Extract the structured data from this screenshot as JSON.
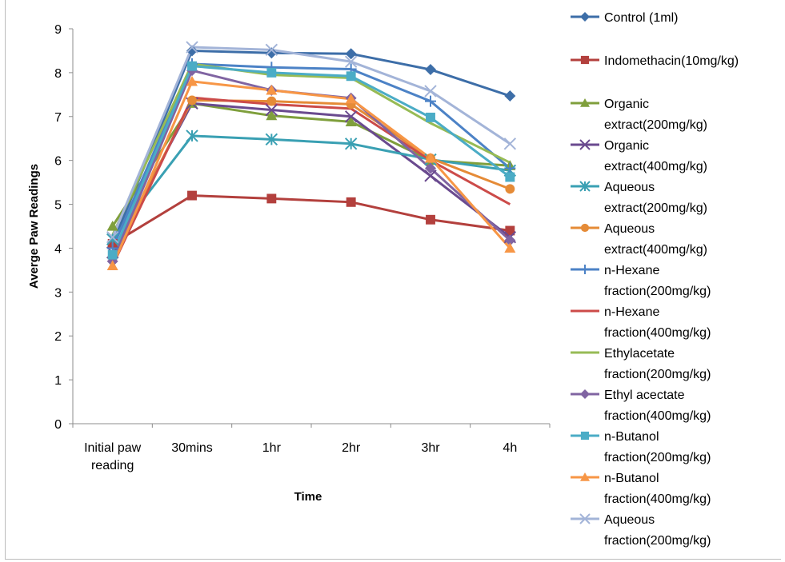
{
  "chart_data": {
    "type": "line",
    "xlabel": "Time",
    "ylabel": "Averge Paw Readings",
    "ylim": [
      0,
      9
    ],
    "yticks": [
      0,
      1,
      2,
      3,
      4,
      5,
      6,
      7,
      8,
      9
    ],
    "grid": false,
    "legend": "right",
    "categories": [
      "Initial paw reading",
      "30mins",
      "1hr",
      "2hr",
      "3hr",
      "4h"
    ],
    "series": [
      {
        "name": "Control (1ml)",
        "color": "#3d6ea8",
        "marker": "diamond",
        "values": [
          4.1,
          8.5,
          8.45,
          8.43,
          8.07,
          7.47
        ]
      },
      {
        "name": "Indomethacin(10mg/kg)",
        "color": "#b3403d",
        "marker": "square",
        "values": [
          4.1,
          5.2,
          5.13,
          5.05,
          4.65,
          4.4
        ]
      },
      {
        "name": "Organic extract(200mg/kg)",
        "color": "#7f9f3c",
        "marker": "triangle",
        "values": [
          4.5,
          7.3,
          7.02,
          6.88,
          6.0,
          5.88
        ]
      },
      {
        "name": "Organic extract(400mg/kg)",
        "color": "#6a4a8f",
        "marker": "x",
        "values": [
          3.9,
          7.3,
          7.15,
          7.0,
          5.65,
          4.25
        ]
      },
      {
        "name": "Aqueous extract(200mg/kg)",
        "color": "#3aa0b3",
        "marker": "asterisk",
        "values": [
          4.2,
          6.56,
          6.48,
          6.38,
          6.02,
          5.77
        ]
      },
      {
        "name": "Aqueous extract(400mg/kg)",
        "color": "#e58b37",
        "marker": "circle",
        "values": [
          3.8,
          7.37,
          7.35,
          7.28,
          6.05,
          5.35
        ]
      },
      {
        "name": "n-Hexane fraction(200mg/kg)",
        "color": "#4c82c6",
        "marker": "plus",
        "values": [
          4.0,
          8.2,
          8.12,
          8.08,
          7.35,
          5.82
        ]
      },
      {
        "name": "n-Hexane fraction(400mg/kg)",
        "color": "#cc4b49",
        "marker": "none",
        "values": [
          3.6,
          7.43,
          7.28,
          7.18,
          6.0,
          5.0
        ]
      },
      {
        "name": "Ethylacetate fraction(200mg/kg)",
        "color": "#97bb55",
        "marker": "none",
        "values": [
          4.3,
          8.2,
          7.95,
          7.88,
          6.85,
          5.95
        ]
      },
      {
        "name": "Ethyl acectate fraction(400mg/kg)",
        "color": "#8064a2",
        "marker": "diamond",
        "values": [
          3.7,
          8.05,
          7.6,
          7.42,
          5.82,
          4.18
        ]
      },
      {
        "name": "n-Butanol fraction(200mg/kg)",
        "color": "#4bacc6",
        "marker": "square",
        "values": [
          3.85,
          8.15,
          8.0,
          7.92,
          6.98,
          5.62
        ]
      },
      {
        "name": "n-Butanol fraction(400mg/kg)",
        "color": "#f79646",
        "marker": "triangle",
        "values": [
          3.6,
          7.8,
          7.6,
          7.4,
          6.05,
          4.0
        ]
      },
      {
        "name": "Aqueous fraction(200mg/kg)",
        "color": "#a3b4d8",
        "marker": "x",
        "values": [
          4.25,
          8.58,
          8.52,
          8.25,
          7.58,
          6.38
        ]
      }
    ]
  }
}
